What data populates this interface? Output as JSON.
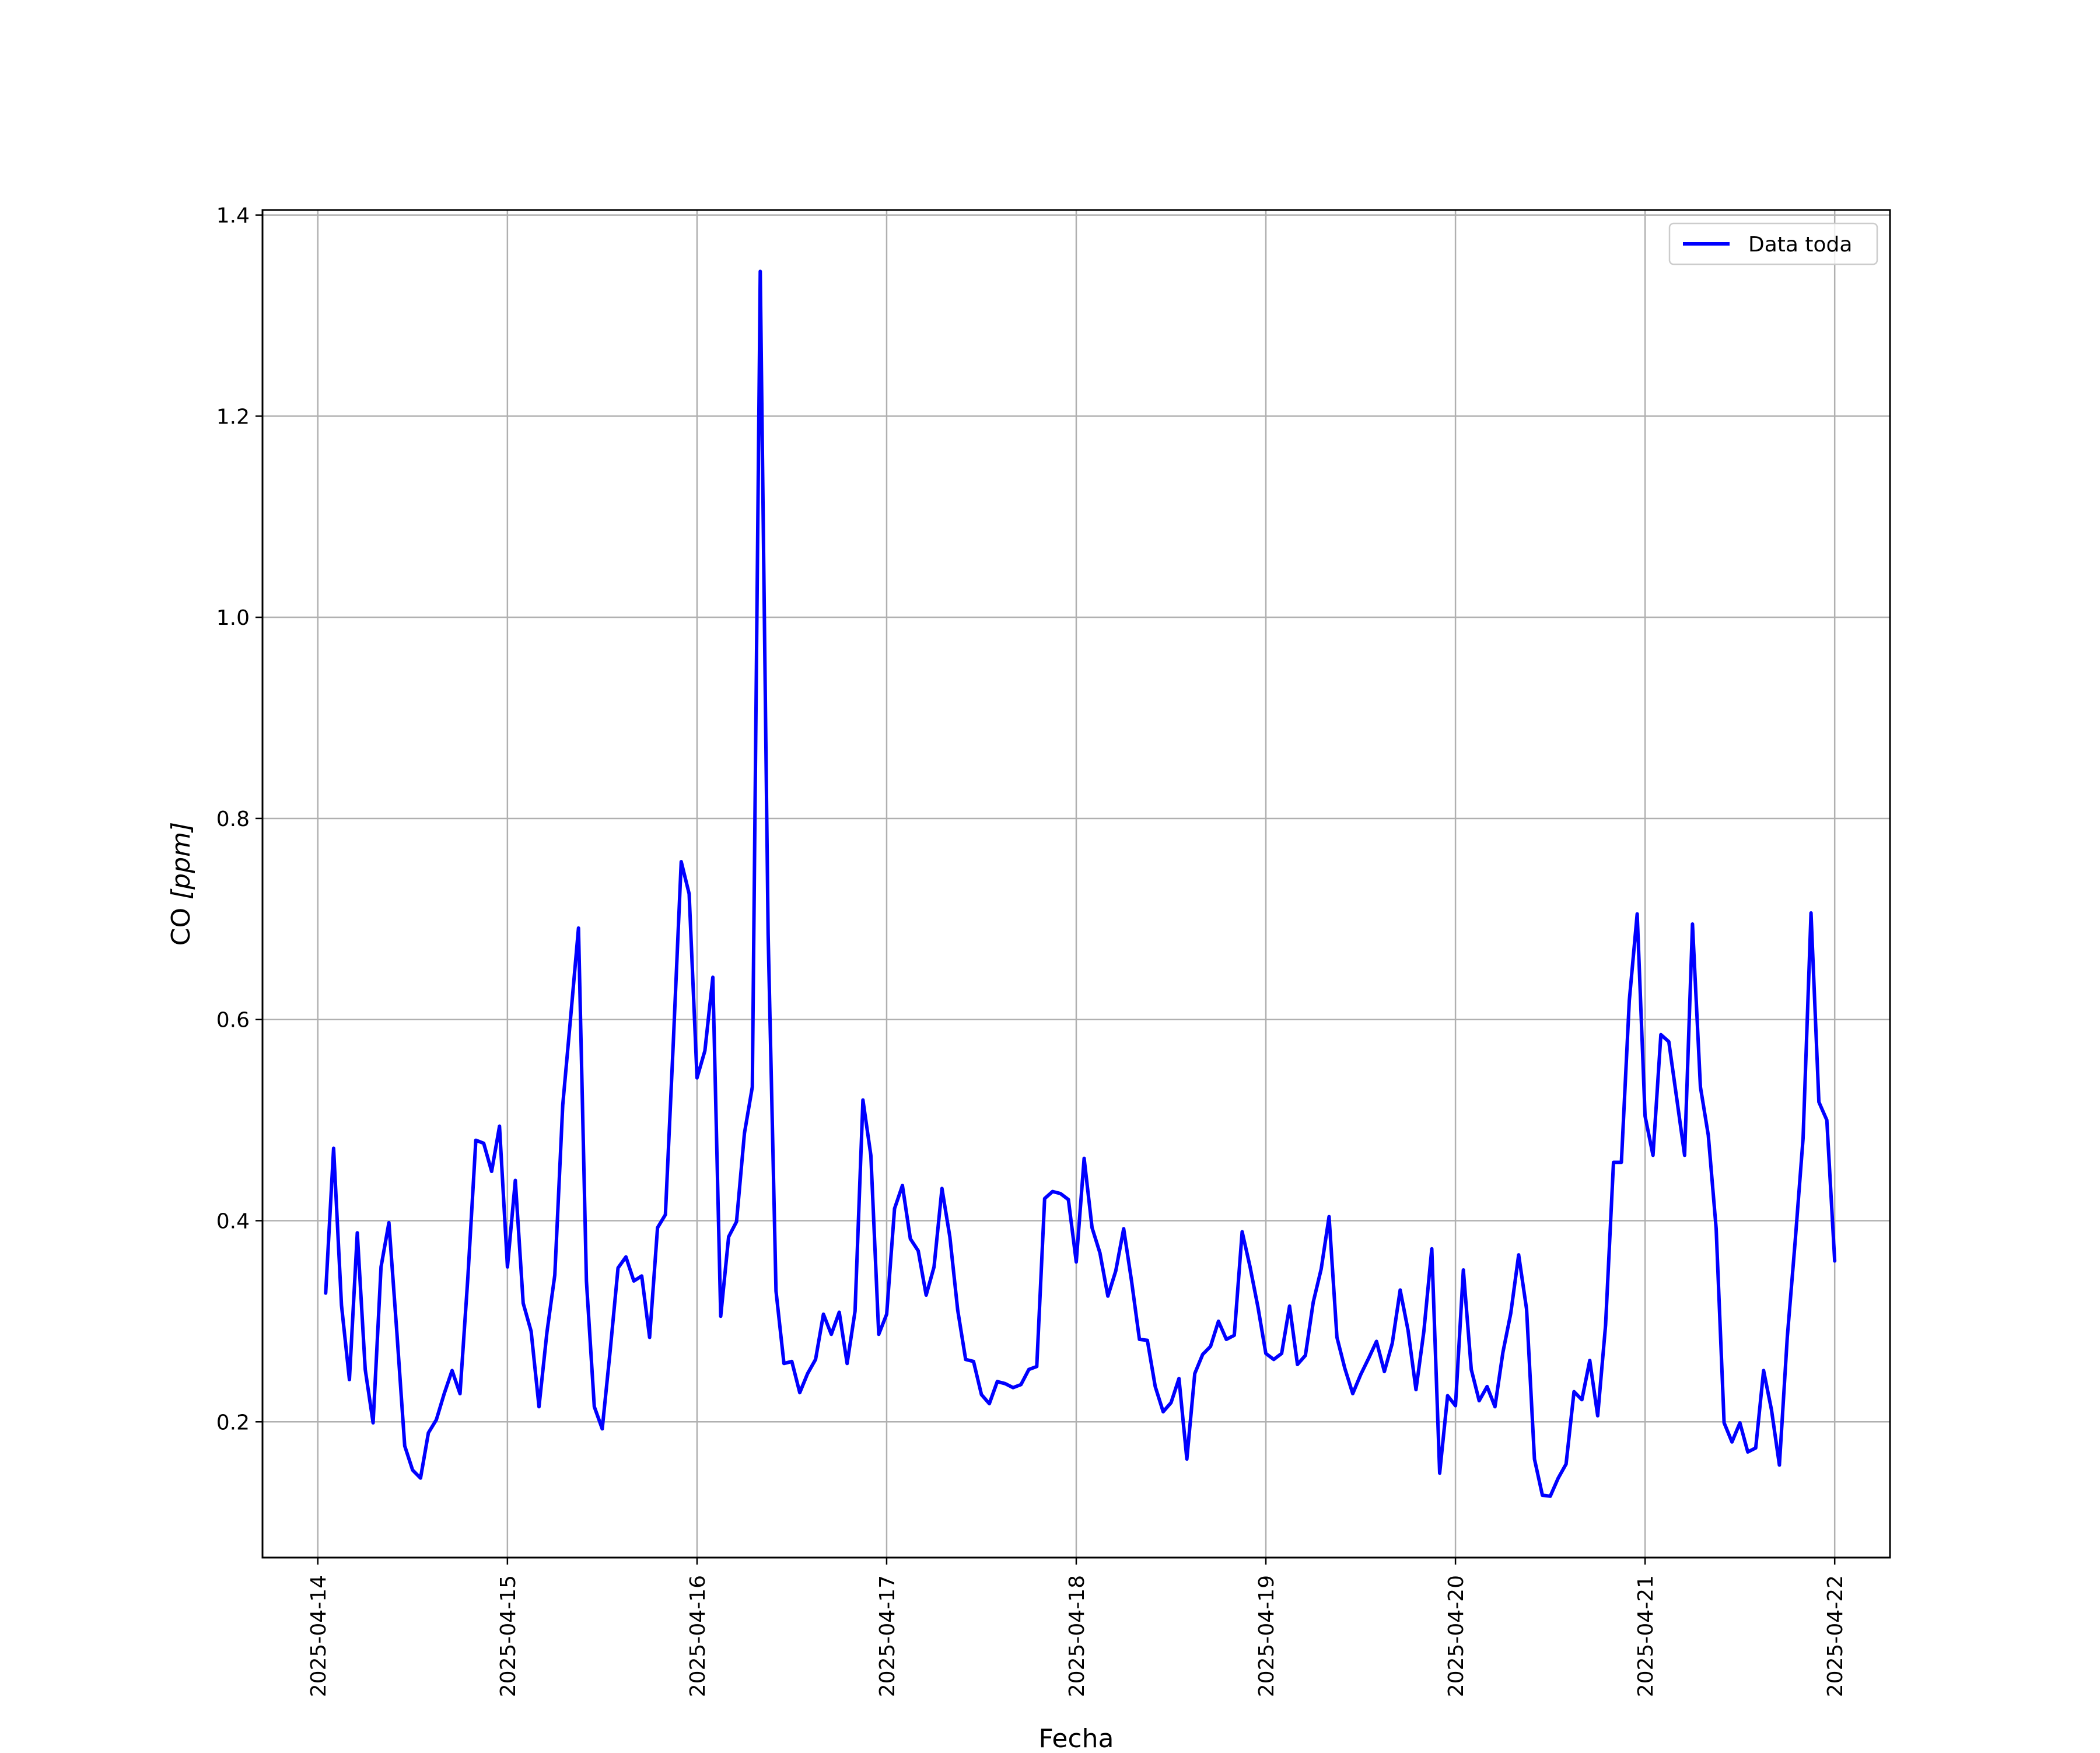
{
  "chart_data": {
    "type": "line",
    "xlabel": "Fecha",
    "ylabel_main": "CO ",
    "ylabel_unit": "[ppm]",
    "ylim": [
      0.065,
      1.405
    ],
    "xlim": [
      "2025-04-13T17:00:00",
      "2025-04-22T07:00:00"
    ],
    "yticks": [
      0.2,
      0.4,
      0.6,
      0.8,
      1.0,
      1.2,
      1.4
    ],
    "ytick_labels": [
      "0.2",
      "0.4",
      "0.6",
      "0.8",
      "1.0",
      "1.2",
      "1.4"
    ],
    "xticks": [
      "2025-04-14",
      "2025-04-15",
      "2025-04-16",
      "2025-04-17",
      "2025-04-18",
      "2025-04-19",
      "2025-04-20",
      "2025-04-21",
      "2025-04-22"
    ],
    "grid": true,
    "legend_position": "top-right",
    "series": [
      {
        "name": "Data toda",
        "color": "#0000ff",
        "x": [
          "2025-04-14T01:00",
          "2025-04-14T02:00",
          "2025-04-14T03:00",
          "2025-04-14T04:00",
          "2025-04-14T05:00",
          "2025-04-14T06:00",
          "2025-04-14T07:00",
          "2025-04-14T08:00",
          "2025-04-14T09:00",
          "2025-04-14T10:00",
          "2025-04-14T11:00",
          "2025-04-14T12:00",
          "2025-04-14T13:00",
          "2025-04-14T14:00",
          "2025-04-14T15:00",
          "2025-04-14T16:00",
          "2025-04-14T17:00",
          "2025-04-14T18:00",
          "2025-04-14T19:00",
          "2025-04-14T20:00",
          "2025-04-14T21:00",
          "2025-04-14T22:00",
          "2025-04-14T23:00",
          "2025-04-15T00:00",
          "2025-04-15T01:00",
          "2025-04-15T02:00",
          "2025-04-15T03:00",
          "2025-04-15T04:00",
          "2025-04-15T05:00",
          "2025-04-15T06:00",
          "2025-04-15T07:00",
          "2025-04-15T08:00",
          "2025-04-15T09:00",
          "2025-04-15T10:00",
          "2025-04-15T11:00",
          "2025-04-15T12:00",
          "2025-04-15T13:00",
          "2025-04-15T14:00",
          "2025-04-15T15:00",
          "2025-04-15T16:00",
          "2025-04-15T17:00",
          "2025-04-15T18:00",
          "2025-04-15T19:00",
          "2025-04-15T20:00",
          "2025-04-15T21:00",
          "2025-04-15T22:00",
          "2025-04-15T23:00",
          "2025-04-16T00:00",
          "2025-04-16T01:00",
          "2025-04-16T02:00",
          "2025-04-16T03:00",
          "2025-04-16T04:00",
          "2025-04-16T05:00",
          "2025-04-16T06:00",
          "2025-04-16T07:00",
          "2025-04-16T08:00",
          "2025-04-16T09:00",
          "2025-04-16T10:00",
          "2025-04-16T11:00",
          "2025-04-16T12:00",
          "2025-04-16T13:00",
          "2025-04-16T14:00",
          "2025-04-16T15:00",
          "2025-04-16T16:00",
          "2025-04-16T17:00",
          "2025-04-16T18:00",
          "2025-04-16T19:00",
          "2025-04-16T20:00",
          "2025-04-16T21:00",
          "2025-04-16T22:00",
          "2025-04-16T23:00",
          "2025-04-17T00:00",
          "2025-04-17T01:00",
          "2025-04-17T02:00",
          "2025-04-17T03:00",
          "2025-04-17T04:00",
          "2025-04-17T05:00",
          "2025-04-17T06:00",
          "2025-04-17T07:00",
          "2025-04-17T08:00",
          "2025-04-17T09:00",
          "2025-04-17T10:00",
          "2025-04-17T11:00",
          "2025-04-17T12:00",
          "2025-04-17T13:00",
          "2025-04-17T14:00",
          "2025-04-17T15:00",
          "2025-04-17T16:00",
          "2025-04-17T17:00",
          "2025-04-17T18:00",
          "2025-04-17T19:00",
          "2025-04-17T20:00",
          "2025-04-17T21:00",
          "2025-04-17T22:00",
          "2025-04-17T23:00",
          "2025-04-18T00:00",
          "2025-04-18T01:00",
          "2025-04-18T02:00",
          "2025-04-18T03:00",
          "2025-04-18T04:00",
          "2025-04-18T05:00",
          "2025-04-18T06:00",
          "2025-04-18T07:00",
          "2025-04-18T08:00",
          "2025-04-18T09:00",
          "2025-04-18T10:00",
          "2025-04-18T11:00",
          "2025-04-18T12:00",
          "2025-04-18T13:00",
          "2025-04-18T14:00",
          "2025-04-18T15:00",
          "2025-04-18T16:00",
          "2025-04-18T17:00",
          "2025-04-18T18:00",
          "2025-04-18T19:00",
          "2025-04-18T20:00",
          "2025-04-18T21:00",
          "2025-04-18T22:00",
          "2025-04-18T23:00",
          "2025-04-19T00:00",
          "2025-04-19T01:00",
          "2025-04-19T02:00",
          "2025-04-19T03:00",
          "2025-04-19T04:00",
          "2025-04-19T05:00",
          "2025-04-19T06:00",
          "2025-04-19T07:00",
          "2025-04-19T08:00",
          "2025-04-19T09:00",
          "2025-04-19T10:00",
          "2025-04-19T11:00",
          "2025-04-19T12:00",
          "2025-04-19T13:00",
          "2025-04-19T14:00",
          "2025-04-19T15:00",
          "2025-04-19T16:00",
          "2025-04-19T17:00",
          "2025-04-19T18:00",
          "2025-04-19T19:00",
          "2025-04-19T20:00",
          "2025-04-19T21:00",
          "2025-04-19T22:00",
          "2025-04-19T23:00",
          "2025-04-20T00:00",
          "2025-04-20T01:00",
          "2025-04-20T02:00",
          "2025-04-20T03:00",
          "2025-04-20T04:00",
          "2025-04-20T05:00",
          "2025-04-20T06:00",
          "2025-04-20T07:00",
          "2025-04-20T08:00",
          "2025-04-20T09:00",
          "2025-04-20T10:00",
          "2025-04-20T11:00",
          "2025-04-20T12:00",
          "2025-04-20T13:00",
          "2025-04-20T14:00",
          "2025-04-20T15:00",
          "2025-04-20T16:00",
          "2025-04-20T17:00",
          "2025-04-20T18:00",
          "2025-04-20T19:00",
          "2025-04-20T20:00",
          "2025-04-20T21:00",
          "2025-04-20T22:00",
          "2025-04-20T23:00",
          "2025-04-21T00:00",
          "2025-04-21T01:00",
          "2025-04-21T02:00",
          "2025-04-21T03:00",
          "2025-04-21T04:00",
          "2025-04-21T05:00",
          "2025-04-21T06:00",
          "2025-04-21T07:00",
          "2025-04-21T08:00",
          "2025-04-21T09:00",
          "2025-04-21T10:00",
          "2025-04-21T11:00",
          "2025-04-21T12:00",
          "2025-04-21T13:00",
          "2025-04-21T14:00",
          "2025-04-21T15:00",
          "2025-04-21T16:00",
          "2025-04-21T17:00",
          "2025-04-21T18:00",
          "2025-04-21T19:00",
          "2025-04-21T20:00",
          "2025-04-21T21:00",
          "2025-04-21T22:00",
          "2025-04-21T23:00",
          "2025-04-22T00:00"
        ],
        "y": [
          0.328,
          0.472,
          0.316,
          0.242,
          0.388,
          0.252,
          0.199,
          0.354,
          0.398,
          0.29,
          0.176,
          0.152,
          0.144,
          0.189,
          0.202,
          0.228,
          0.251,
          0.228,
          0.344,
          0.48,
          0.477,
          0.449,
          0.494,
          0.354,
          0.44,
          0.318,
          0.29,
          0.215,
          0.289,
          0.346,
          0.515,
          0.602,
          0.691,
          0.34,
          0.215,
          0.193,
          0.27,
          0.353,
          0.364,
          0.34,
          0.345,
          0.284,
          0.393,
          0.406,
          0.578,
          0.757,
          0.725,
          0.542,
          0.569,
          0.642,
          0.305,
          0.384,
          0.399,
          0.487,
          0.533,
          1.344,
          0.685,
          0.33,
          0.258,
          0.26,
          0.229,
          0.248,
          0.262,
          0.307,
          0.287,
          0.309,
          0.258,
          0.31,
          0.52,
          0.465,
          0.287,
          0.307,
          0.412,
          0.435,
          0.382,
          0.37,
          0.326,
          0.354,
          0.432,
          0.384,
          0.311,
          0.262,
          0.26,
          0.227,
          0.218,
          0.24,
          0.238,
          0.234,
          0.237,
          0.252,
          0.255,
          0.422,
          0.429,
          0.427,
          0.421,
          0.359,
          0.462,
          0.393,
          0.368,
          0.325,
          0.35,
          0.392,
          0.34,
          0.282,
          0.281,
          0.235,
          0.21,
          0.219,
          0.243,
          0.163,
          0.248,
          0.267,
          0.275,
          0.3,
          0.282,
          0.286,
          0.389,
          0.354,
          0.314,
          0.268,
          0.262,
          0.268,
          0.315,
          0.257,
          0.266,
          0.319,
          0.352,
          0.404,
          0.284,
          0.253,
          0.228,
          0.247,
          0.263,
          0.28,
          0.25,
          0.278,
          0.331,
          0.291,
          0.232,
          0.29,
          0.372,
          0.149,
          0.226,
          0.216,
          0.351,
          0.252,
          0.221,
          0.235,
          0.215,
          0.269,
          0.308,
          0.366,
          0.312,
          0.163,
          0.127,
          0.126,
          0.144,
          0.158,
          0.23,
          0.222,
          0.261,
          0.206,
          0.296,
          0.458,
          0.458,
          0.619,
          0.705,
          0.504,
          0.465,
          0.585,
          0.578,
          0.522,
          0.465,
          0.695,
          0.533,
          0.485,
          0.392,
          0.199,
          0.18,
          0.199,
          0.17,
          0.174,
          0.251,
          0.212,
          0.157,
          0.284,
          0.38,
          0.482,
          0.706,
          0.518,
          0.5,
          0.36
        ]
      }
    ]
  }
}
